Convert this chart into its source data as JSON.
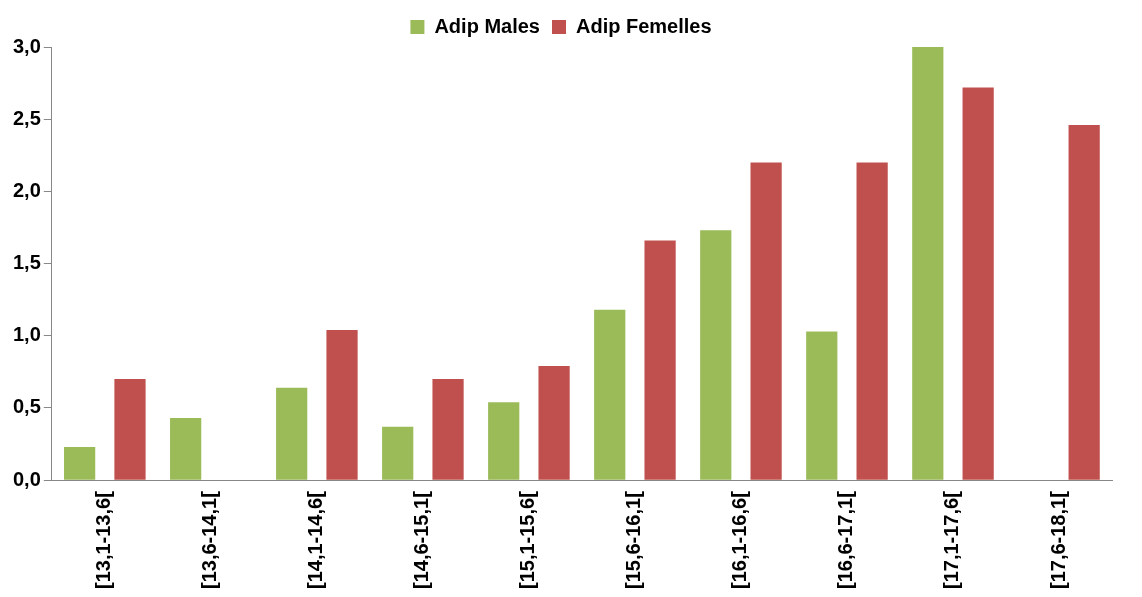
{
  "chart_data": {
    "type": "bar",
    "categories": [
      "[13,1-13,6[",
      "[13,6-14,1[",
      "[14,1-14,6[",
      "[14,6-15,1[",
      "[15,1-15,6[",
      "[15,6-16,1[",
      "[16,1-16,6[",
      "[16,6-17,1[",
      "[17,1-17,6[",
      "[17,6-18,1["
    ],
    "series": [
      {
        "name": "Adip Males",
        "color": "#9bbb59",
        "values": [
          0.23,
          0.43,
          0.64,
          0.37,
          0.54,
          1.18,
          1.73,
          1.03,
          3,
          0
        ]
      },
      {
        "name": "Adip Femelles",
        "color": "#c0504d",
        "values": [
          0.7,
          0,
          1.04,
          0.7,
          0.79,
          1.66,
          2.2,
          2.2,
          2.72,
          2.46
        ]
      }
    ],
    "ylim": [
      0,
      3
    ],
    "yticks": [
      {
        "value": 0,
        "label": "0,0"
      },
      {
        "value": 0.5,
        "label": "0,5"
      },
      {
        "value": 1,
        "label": "1,0"
      },
      {
        "value": 1.5,
        "label": "1,5"
      },
      {
        "value": 2,
        "label": "2,0"
      },
      {
        "value": 2.5,
        "label": "2,5"
      },
      {
        "value": 3,
        "label": "3,0"
      }
    ],
    "grid": false,
    "legend": "top"
  }
}
